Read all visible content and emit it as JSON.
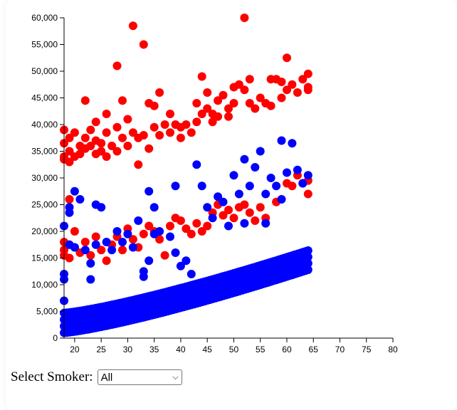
{
  "filter": {
    "label": "Select Smoker:",
    "selected": "All",
    "chevron_icon": "chevron-down-icon"
  },
  "colors": {
    "smoker_yes": "#ff0000",
    "smoker_no": "#0000ff"
  },
  "chart_data": {
    "type": "scatter",
    "title": "",
    "xlabel": "",
    "ylabel": "",
    "xlim": [
      18,
      80
    ],
    "ylim": [
      0,
      60000
    ],
    "x_ticks": [
      "20",
      "25",
      "30",
      "35",
      "40",
      "45",
      "50",
      "55",
      "60",
      "65",
      "70",
      "75",
      "80"
    ],
    "y_ticks": [
      "0",
      "5,000",
      "10,000",
      "15,000",
      "20,000",
      "25,000",
      "30,000",
      "35,000",
      "40,000",
      "45,000",
      "50,000",
      "55,000",
      "60,000"
    ],
    "grid": false,
    "legend": "none",
    "series": [
      {
        "color": "#ff0000",
        "points": [
          [
            18,
            39000
          ],
          [
            18,
            36500
          ],
          [
            18,
            34000
          ],
          [
            18,
            33500
          ],
          [
            19,
            37500
          ],
          [
            19,
            35000
          ],
          [
            19,
            33000
          ],
          [
            20,
            38500
          ],
          [
            20,
            34000
          ],
          [
            21,
            36000
          ],
          [
            21,
            34500
          ],
          [
            22,
            44500
          ],
          [
            22,
            37500
          ],
          [
            22,
            35500
          ],
          [
            23,
            39000
          ],
          [
            23,
            36000
          ],
          [
            24,
            34500
          ],
          [
            24,
            37000
          ],
          [
            24,
            40500
          ],
          [
            25,
            36500
          ],
          [
            25,
            35000
          ],
          [
            26,
            42000
          ],
          [
            26,
            38500
          ],
          [
            26,
            34000
          ],
          [
            27,
            36000
          ],
          [
            28,
            51000
          ],
          [
            28,
            39500
          ],
          [
            28,
            35000
          ],
          [
            29,
            44500
          ],
          [
            29,
            37500
          ],
          [
            30,
            41000
          ],
          [
            30,
            36000
          ],
          [
            31,
            58500
          ],
          [
            31,
            38500
          ],
          [
            32,
            37500
          ],
          [
            32,
            32500
          ],
          [
            33,
            55000
          ],
          [
            33,
            38000
          ],
          [
            34,
            44000
          ],
          [
            34,
            35500
          ],
          [
            35,
            39500
          ],
          [
            35,
            43500
          ],
          [
            36,
            46000
          ],
          [
            36,
            38000
          ],
          [
            37,
            40000
          ],
          [
            38,
            42000
          ],
          [
            38,
            38500
          ],
          [
            39,
            40000
          ],
          [
            40,
            39500
          ],
          [
            40,
            37500
          ],
          [
            41,
            40000
          ],
          [
            42,
            38500
          ],
          [
            43,
            44000
          ],
          [
            43,
            40500
          ],
          [
            44,
            49000
          ],
          [
            44,
            42000
          ],
          [
            45,
            46000
          ],
          [
            45,
            43000
          ],
          [
            46,
            42000
          ],
          [
            46,
            40500
          ],
          [
            47,
            44500
          ],
          [
            47,
            41500
          ],
          [
            48,
            45500
          ],
          [
            49,
            43000
          ],
          [
            49,
            41500
          ],
          [
            50,
            47000
          ],
          [
            50,
            44000
          ],
          [
            51,
            47500
          ],
          [
            52,
            46500
          ],
          [
            52,
            60000
          ],
          [
            53,
            48500
          ],
          [
            53,
            44000
          ],
          [
            54,
            43000
          ],
          [
            55,
            45000
          ],
          [
            56,
            44000
          ],
          [
            57,
            48500
          ],
          [
            57,
            43500
          ],
          [
            58,
            48500
          ],
          [
            59,
            48000
          ],
          [
            59,
            45000
          ],
          [
            60,
            52500
          ],
          [
            60,
            46500
          ],
          [
            61,
            47500
          ],
          [
            62,
            46000
          ],
          [
            63,
            48500
          ],
          [
            64,
            47000
          ],
          [
            64,
            49500
          ],
          [
            64,
            46500
          ],
          [
            18,
            18000
          ],
          [
            18,
            16500
          ],
          [
            18,
            15500
          ],
          [
            19,
            17500
          ],
          [
            19,
            15000
          ],
          [
            20,
            20000
          ],
          [
            20,
            17000
          ],
          [
            21,
            16000
          ],
          [
            22,
            18000
          ],
          [
            23,
            15500
          ],
          [
            24,
            19000
          ],
          [
            25,
            16500
          ],
          [
            26,
            14500
          ],
          [
            27,
            17500
          ],
          [
            28,
            19000
          ],
          [
            29,
            16500
          ],
          [
            30,
            20500
          ],
          [
            31,
            18500
          ],
          [
            32,
            17000
          ],
          [
            33,
            19500
          ],
          [
            34,
            21000
          ],
          [
            35,
            20000
          ],
          [
            36,
            18500
          ],
          [
            37,
            15500
          ],
          [
            38,
            21000
          ],
          [
            39,
            22500
          ],
          [
            40,
            22000
          ],
          [
            41,
            20500
          ],
          [
            42,
            19500
          ],
          [
            43,
            21500
          ],
          [
            44,
            20000
          ],
          [
            45,
            21000
          ],
          [
            46,
            23500
          ],
          [
            47,
            25000
          ],
          [
            48,
            23000
          ],
          [
            49,
            24000
          ],
          [
            50,
            22500
          ],
          [
            51,
            24500
          ],
          [
            52,
            25000
          ],
          [
            53,
            23500
          ],
          [
            54,
            22000
          ],
          [
            55,
            24500
          ],
          [
            56,
            22500
          ],
          [
            58,
            25500
          ],
          [
            60,
            29000
          ],
          [
            61,
            28500
          ],
          [
            62,
            30500
          ],
          [
            63,
            29000
          ],
          [
            64,
            27000
          ],
          [
            64,
            29500
          ],
          [
            19,
            26000
          ]
        ]
      },
      {
        "color": "#0000ff",
        "points": [
          [
            18,
            7000
          ],
          [
            18,
            12000
          ],
          [
            18,
            11000
          ],
          [
            18,
            21000
          ],
          [
            19,
            23500
          ],
          [
            19,
            24500
          ],
          [
            19,
            17500
          ],
          [
            20,
            27500
          ],
          [
            20,
            17000
          ],
          [
            21,
            26000
          ],
          [
            22,
            16500
          ],
          [
            23,
            14000
          ],
          [
            23,
            11000
          ],
          [
            24,
            25000
          ],
          [
            24,
            17500
          ],
          [
            25,
            24500
          ],
          [
            26,
            18000
          ],
          [
            27,
            16500
          ],
          [
            28,
            20000
          ],
          [
            29,
            18000
          ],
          [
            30,
            19500
          ],
          [
            31,
            17000
          ],
          [
            32,
            22000
          ],
          [
            33,
            12500
          ],
          [
            33,
            11500
          ],
          [
            34,
            27500
          ],
          [
            34,
            14500
          ],
          [
            35,
            24500
          ],
          [
            35,
            19500
          ],
          [
            36,
            20000
          ],
          [
            38,
            19000
          ],
          [
            39,
            28500
          ],
          [
            39,
            16000
          ],
          [
            40,
            13500
          ],
          [
            41,
            14500
          ],
          [
            42,
            12000
          ],
          [
            43,
            32500
          ],
          [
            44,
            28500
          ],
          [
            45,
            24500
          ],
          [
            46,
            22500
          ],
          [
            47,
            26500
          ],
          [
            48,
            25500
          ],
          [
            49,
            21000
          ],
          [
            50,
            30500
          ],
          [
            51,
            27000
          ],
          [
            52,
            33500
          ],
          [
            53,
            28500
          ],
          [
            54,
            32000
          ],
          [
            55,
            35000
          ],
          [
            56,
            27000
          ],
          [
            57,
            30000
          ],
          [
            58,
            28500
          ],
          [
            59,
            37000
          ],
          [
            60,
            31000
          ],
          [
            61,
            36500
          ],
          [
            62,
            31500
          ],
          [
            63,
            29000
          ],
          [
            64,
            30500
          ],
          [
            52,
            21500
          ],
          [
            56,
            21500
          ],
          [
            59,
            26000
          ]
        ]
      }
    ],
    "band": {
      "color": "#0000ff",
      "x_range": [
        18,
        64
      ],
      "lower_start": 1000,
      "lower_end": 12800,
      "upper_start": 4700,
      "upper_end": 16400,
      "curve": 1.25
    }
  }
}
